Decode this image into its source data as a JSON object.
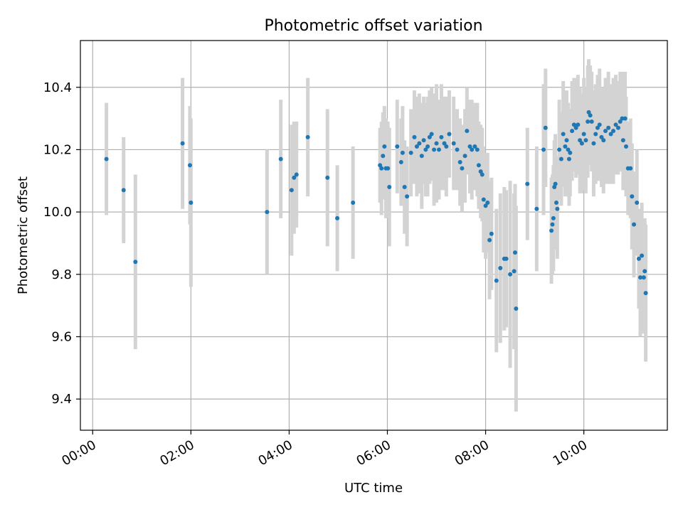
{
  "chart_data": {
    "type": "scatter",
    "title": "Photometric offset variation",
    "xlabel": "UTC time",
    "ylabel": "Photometric offset",
    "x_unit": "hours UTC",
    "xlim": [
      "-0.25",
      11.7
    ],
    "ylim": [
      9.3,
      10.55
    ],
    "x_tick_labels": [
      "00:00",
      "02:00",
      "04:00",
      "06:00",
      "08:00",
      "10:00"
    ],
    "x_tick_values": [
      0,
      2,
      4,
      6,
      8,
      10
    ],
    "y_tick_labels": [
      "9.4",
      "9.6",
      "9.8",
      "10.0",
      "10.2",
      "10.4"
    ],
    "y_tick_values": [
      9.4,
      9.6,
      9.8,
      10.0,
      10.2,
      10.4
    ],
    "grid": true,
    "colors": {
      "points": "#1f77b4",
      "errorbars": "#d3d3d3",
      "grid": "#b0b0b0"
    },
    "series": [
      {
        "points": [
          [
            0.28,
            10.17,
            0.18
          ],
          [
            0.63,
            10.07,
            0.17
          ],
          [
            0.87,
            9.84,
            0.28
          ],
          [
            1.83,
            10.22,
            0.21
          ],
          [
            1.98,
            10.15,
            0.19
          ],
          [
            2.0,
            10.03,
            0.27
          ],
          [
            3.55,
            10.0,
            0.2
          ],
          [
            3.83,
            10.17,
            0.19
          ],
          [
            4.05,
            10.07,
            0.21
          ],
          [
            4.1,
            10.11,
            0.18
          ],
          [
            4.15,
            10.12,
            0.17
          ],
          [
            4.38,
            10.24,
            0.19
          ],
          [
            4.78,
            10.11,
            0.22
          ],
          [
            4.98,
            9.98,
            0.17
          ],
          [
            5.3,
            10.03,
            0.18
          ],
          [
            5.85,
            10.15,
            0.12
          ],
          [
            5.88,
            10.14,
            0.15
          ],
          [
            5.91,
            10.18,
            0.14
          ],
          [
            5.94,
            10.21,
            0.13
          ],
          [
            5.97,
            10.14,
            0.16
          ],
          [
            6.01,
            10.14,
            0.15
          ],
          [
            6.04,
            10.08,
            0.19
          ],
          [
            6.2,
            10.21,
            0.15
          ],
          [
            6.28,
            10.16,
            0.14
          ],
          [
            6.31,
            10.19,
            0.15
          ],
          [
            6.35,
            10.08,
            0.15
          ],
          [
            6.4,
            10.05,
            0.16
          ],
          [
            6.48,
            10.19,
            0.14
          ],
          [
            6.55,
            10.24,
            0.15
          ],
          [
            6.6,
            10.21,
            0.16
          ],
          [
            6.65,
            10.22,
            0.16
          ],
          [
            6.7,
            10.18,
            0.17
          ],
          [
            6.74,
            10.23,
            0.14
          ],
          [
            6.78,
            10.2,
            0.15
          ],
          [
            6.82,
            10.21,
            0.16
          ],
          [
            6.86,
            10.24,
            0.15
          ],
          [
            6.9,
            10.25,
            0.15
          ],
          [
            6.95,
            10.2,
            0.18
          ],
          [
            7.0,
            10.22,
            0.19
          ],
          [
            7.05,
            10.2,
            0.16
          ],
          [
            7.1,
            10.24,
            0.17
          ],
          [
            7.16,
            10.22,
            0.15
          ],
          [
            7.2,
            10.21,
            0.16
          ],
          [
            7.26,
            10.25,
            0.14
          ],
          [
            7.35,
            10.22,
            0.15
          ],
          [
            7.42,
            10.2,
            0.13
          ],
          [
            7.48,
            10.16,
            0.14
          ],
          [
            7.52,
            10.14,
            0.14
          ],
          [
            7.58,
            10.18,
            0.15
          ],
          [
            7.62,
            10.26,
            0.14
          ],
          [
            7.68,
            10.21,
            0.15
          ],
          [
            7.72,
            10.2,
            0.16
          ],
          [
            7.78,
            10.21,
            0.14
          ],
          [
            7.83,
            10.2,
            0.15
          ],
          [
            7.86,
            10.15,
            0.14
          ],
          [
            7.9,
            10.13,
            0.15
          ],
          [
            7.93,
            10.12,
            0.15
          ],
          [
            7.96,
            10.04,
            0.17
          ],
          [
            8.0,
            10.02,
            0.17
          ],
          [
            8.04,
            10.03,
            0.16
          ],
          [
            8.08,
            9.91,
            0.19
          ],
          [
            8.12,
            9.93,
            0.18
          ],
          [
            8.22,
            9.78,
            0.23
          ],
          [
            8.3,
            9.82,
            0.24
          ],
          [
            8.38,
            9.85,
            0.23
          ],
          [
            8.42,
            9.85,
            0.22
          ],
          [
            8.5,
            9.8,
            0.3
          ],
          [
            8.58,
            9.81,
            0.25
          ],
          [
            8.6,
            9.87,
            0.22
          ],
          [
            8.62,
            9.69,
            0.33
          ],
          [
            8.85,
            10.09,
            0.18
          ],
          [
            9.04,
            10.01,
            0.2
          ],
          [
            9.18,
            10.2,
            0.21
          ],
          [
            9.22,
            10.27,
            0.19
          ],
          [
            9.34,
            9.94,
            0.17
          ],
          [
            9.36,
            9.96,
            0.16
          ],
          [
            9.38,
            9.98,
            0.17
          ],
          [
            9.4,
            10.08,
            0.15
          ],
          [
            9.42,
            10.09,
            0.16
          ],
          [
            9.44,
            10.03,
            0.15
          ],
          [
            9.46,
            10.01,
            0.16
          ],
          [
            9.5,
            10.2,
            0.16
          ],
          [
            9.54,
            10.17,
            0.15
          ],
          [
            9.58,
            10.25,
            0.17
          ],
          [
            9.62,
            10.21,
            0.16
          ],
          [
            9.65,
            10.23,
            0.16
          ],
          [
            9.68,
            10.2,
            0.15
          ],
          [
            9.7,
            10.17,
            0.15
          ],
          [
            9.72,
            10.19,
            0.14
          ],
          [
            9.76,
            10.26,
            0.16
          ],
          [
            9.8,
            10.28,
            0.15
          ],
          [
            9.84,
            10.27,
            0.16
          ],
          [
            9.88,
            10.28,
            0.16
          ],
          [
            9.92,
            10.23,
            0.17
          ],
          [
            9.96,
            10.22,
            0.16
          ],
          [
            10.0,
            10.25,
            0.18
          ],
          [
            10.04,
            10.23,
            0.17
          ],
          [
            10.08,
            10.29,
            0.18
          ],
          [
            10.1,
            10.32,
            0.17
          ],
          [
            10.13,
            10.31,
            0.16
          ],
          [
            10.16,
            10.29,
            0.16
          ],
          [
            10.2,
            10.22,
            0.17
          ],
          [
            10.24,
            10.25,
            0.16
          ],
          [
            10.28,
            10.27,
            0.17
          ],
          [
            10.32,
            10.28,
            0.18
          ],
          [
            10.36,
            10.24,
            0.16
          ],
          [
            10.4,
            10.23,
            0.17
          ],
          [
            10.44,
            10.26,
            0.17
          ],
          [
            10.5,
            10.27,
            0.18
          ],
          [
            10.55,
            10.25,
            0.16
          ],
          [
            10.6,
            10.26,
            0.17
          ],
          [
            10.65,
            10.28,
            0.16
          ],
          [
            10.7,
            10.27,
            0.15
          ],
          [
            10.74,
            10.29,
            0.16
          ],
          [
            10.78,
            10.3,
            0.15
          ],
          [
            10.8,
            10.23,
            0.16
          ],
          [
            10.84,
            10.3,
            0.15
          ],
          [
            10.86,
            10.21,
            0.16
          ],
          [
            10.9,
            10.14,
            0.15
          ],
          [
            10.95,
            10.14,
            0.16
          ],
          [
            10.98,
            10.05,
            0.17
          ],
          [
            11.02,
            9.96,
            0.17
          ],
          [
            11.08,
            10.03,
            0.17
          ],
          [
            11.12,
            9.85,
            0.16
          ],
          [
            11.15,
            9.79,
            0.19
          ],
          [
            11.18,
            9.86,
            0.17
          ],
          [
            11.22,
            9.79,
            0.18
          ],
          [
            11.24,
            9.81,
            0.17
          ],
          [
            11.26,
            9.74,
            0.22
          ]
        ]
      }
    ]
  }
}
